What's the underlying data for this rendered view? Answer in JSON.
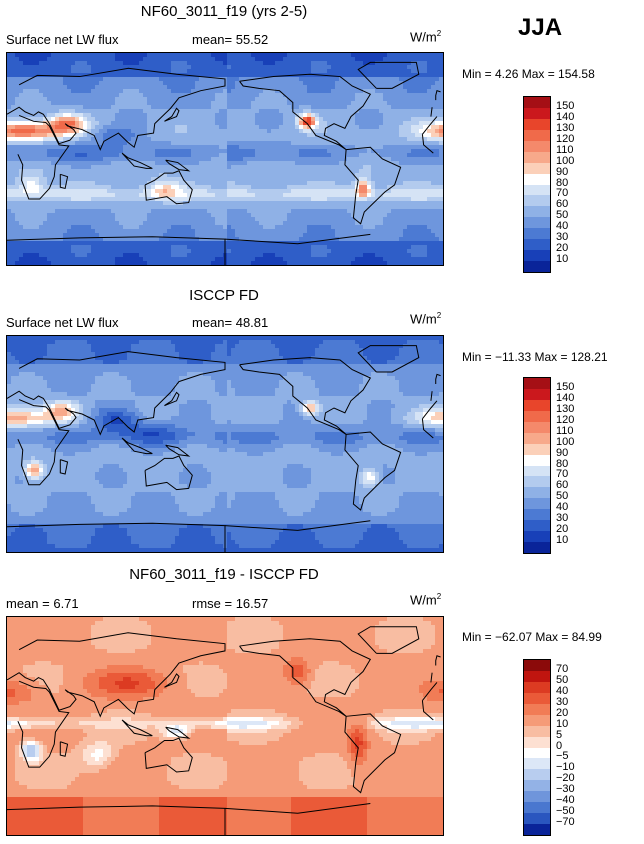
{
  "season": "JJA",
  "panels": [
    {
      "title": "NF60_3011_f19 (yrs 2-5)",
      "left_label": "Surface net LW flux",
      "stat1": "mean=  55.52",
      "stat2": "",
      "units_base": "W/m",
      "units_exp": "2",
      "minmax": "Min =    4.26 Max = 154.58",
      "levels": [
        "150",
        "140",
        "130",
        "120",
        "110",
        "100",
        "90",
        "80",
        "70",
        "60",
        "50",
        "40",
        "30",
        "20",
        "10"
      ],
      "colors": [
        "#a50f15",
        "#cb181d",
        "#e8452b",
        "#f06a4a",
        "#f4896b",
        "#f7a98b",
        "#fbd0b9",
        "#ffffff",
        "#d5e3f5",
        "#b3cbee",
        "#8fb1e6",
        "#6e96dd",
        "#4c7ad3",
        "#2f5ec8",
        "#1840b8",
        "#0a2499"
      ],
      "field": "abs1"
    },
    {
      "title": "ISCCP FD",
      "left_label": "Surface net LW flux",
      "stat1": "mean=  48.81",
      "stat2": "",
      "units_base": "W/m",
      "units_exp": "2",
      "minmax": "Min = −11.33 Max = 128.21",
      "levels": [
        "150",
        "140",
        "130",
        "120",
        "110",
        "100",
        "90",
        "80",
        "70",
        "60",
        "50",
        "40",
        "30",
        "20",
        "10"
      ],
      "colors": [
        "#a50f15",
        "#cb181d",
        "#e8452b",
        "#f06a4a",
        "#f4896b",
        "#f7a98b",
        "#fbd0b9",
        "#ffffff",
        "#d5e3f5",
        "#b3cbee",
        "#8fb1e6",
        "#6e96dd",
        "#4c7ad3",
        "#2f5ec8",
        "#1840b8",
        "#0a2499"
      ],
      "field": "abs2"
    },
    {
      "title": "NF60_3011_f19 - ISCCP FD",
      "left_label": "mean =    6.71",
      "stat1": "",
      "stat2": "rmse =  16.57",
      "units_base": "W/m",
      "units_exp": "2",
      "minmax": "Min = −62.07 Max =  84.99",
      "levels": [
        "70",
        "50",
        "40",
        "30",
        "20",
        "10",
        "5",
        "0",
        "−5",
        "−10",
        "−20",
        "−30",
        "−40",
        "−50",
        "−70"
      ],
      "colors": [
        "#8b0a0a",
        "#c0150f",
        "#dc3b22",
        "#ea5a38",
        "#f17c56",
        "#f59b78",
        "#f8bda2",
        "#fde0d2",
        "#ffffff",
        "#dce7f7",
        "#b8cdef",
        "#93b2e6",
        "#6f95db",
        "#4a77cf",
        "#2a56bf",
        "#0a2499"
      ],
      "field": "diff"
    }
  ]
}
